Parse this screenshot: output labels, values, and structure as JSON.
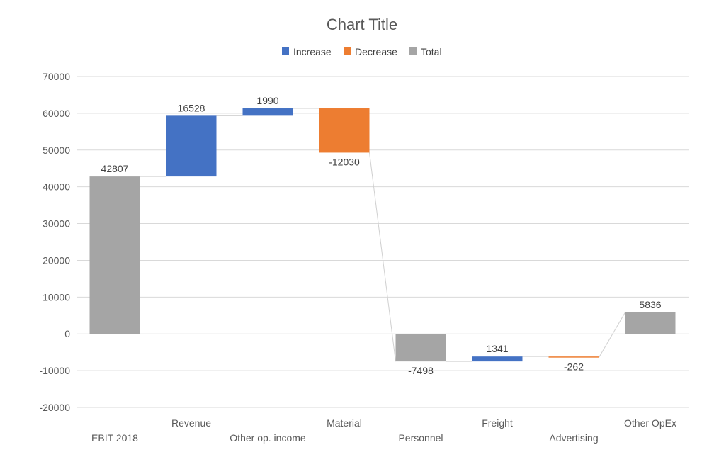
{
  "chart_data": {
    "type": "bar",
    "subtype": "waterfall",
    "title": "Chart Title",
    "xlabel": "",
    "ylabel": "",
    "ylim": [
      -20000,
      70000
    ],
    "y_ticks": [
      "70000",
      "60000",
      "50000",
      "40000",
      "30000",
      "20000",
      "10000",
      "0",
      "-10000",
      "-20000"
    ],
    "grid": true,
    "legend_position": "top",
    "legend": [
      {
        "name": "Increase",
        "color": "#4472C4"
      },
      {
        "name": "Decrease",
        "color": "#ED7D31"
      },
      {
        "name": "Total",
        "color": "#A5A5A5"
      }
    ],
    "categories": [
      "EBIT 2018",
      "Revenue",
      "Other op. income",
      "Material",
      "Personnel",
      "Freight",
      "Advertising",
      "Other OpEx"
    ],
    "values": [
      42807,
      16528,
      1990,
      -12030,
      -7498,
      1341,
      -262,
      5836
    ],
    "labels": [
      "42807",
      "16528",
      "1990",
      "-12030",
      "-7498",
      "1341",
      "-262",
      "5836"
    ],
    "bar_types": [
      "total",
      "increase",
      "increase",
      "decrease",
      "total",
      "increase",
      "decrease",
      "total"
    ]
  }
}
